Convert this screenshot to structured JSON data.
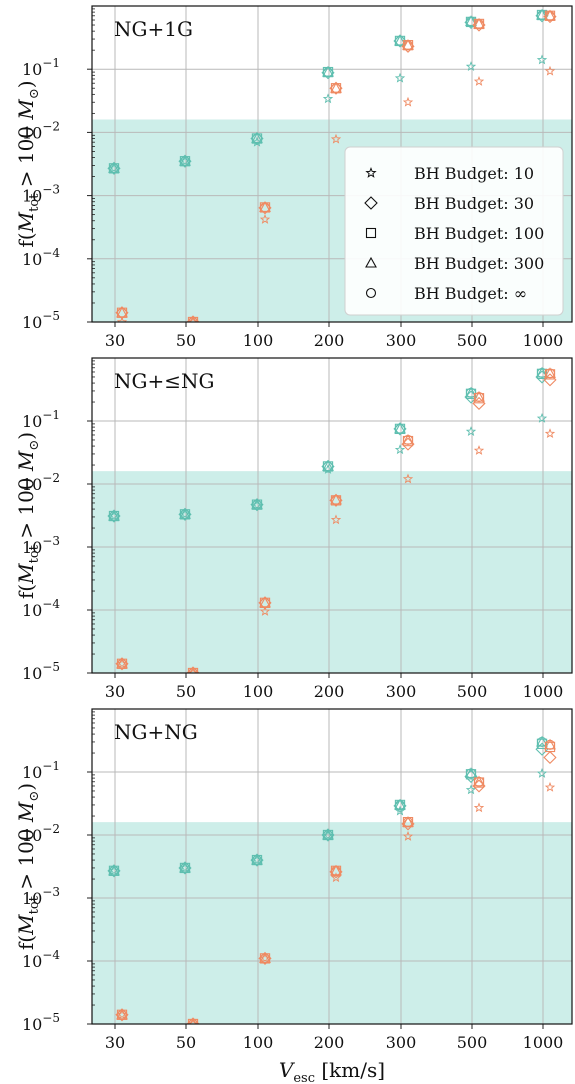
{
  "chart_data": [
    {
      "type": "scatter",
      "title": "NG+1G",
      "ylabel": "f(M_tot > 100 M_⊙)",
      "xlabel": "",
      "y_scale": "log",
      "ylim": [
        1e-05,
        1.0
      ],
      "x_categories": [
        "30",
        "50",
        "100",
        "200",
        "300",
        "500",
        "1000"
      ],
      "shaded_band": {
        "ymax": 0.016,
        "color": "#cdeee9"
      },
      "series": [
        {
          "name": "cyan",
          "color": "#5fbfb0",
          "points": {
            "10": [
              0.0027,
              0.0035,
              0.007,
              0.034,
              0.072,
              0.11,
              0.14
            ],
            "30": [
              0.0027,
              0.0035,
              0.008,
              0.088,
              0.28,
              0.55,
              0.7
            ],
            "100": [
              0.0027,
              0.0035,
              0.008,
              0.09,
              0.28,
              0.56,
              0.72
            ],
            "300": [
              0.0027,
              0.0035,
              0.008,
              0.09,
              0.28,
              0.57,
              0.72
            ],
            "inf": [
              0.0027,
              0.0035,
              0.008,
              0.09,
              0.28,
              0.57,
              0.72
            ]
          }
        },
        {
          "name": "orange",
          "color": "#ef8a62",
          "points": {
            "10": [
              1e-05,
              1e-05,
              0.00042,
              0.0078,
              0.03,
              0.064,
              0.093
            ],
            "30": [
              1.4e-05,
              1e-05,
              0.00064,
              0.05,
              0.23,
              0.5,
              0.68
            ],
            "100": [
              1.4e-05,
              1e-05,
              0.00065,
              0.05,
              0.24,
              0.52,
              0.7
            ],
            "300": [
              1.4e-05,
              1e-05,
              0.00065,
              0.05,
              0.24,
              0.52,
              0.7
            ],
            "inf": [
              1.4e-05,
              1e-05,
              0.00065,
              0.05,
              0.24,
              0.52,
              0.7
            ]
          }
        }
      ]
    },
    {
      "type": "scatter",
      "title": "NG+≤NG",
      "ylabel": "f(M_tot > 100 M_⊙)",
      "xlabel": "",
      "y_scale": "log",
      "ylim": [
        1e-05,
        1.0
      ],
      "x_categories": [
        "30",
        "50",
        "100",
        "200",
        "300",
        "500",
        "1000"
      ],
      "shaded_band": {
        "ymax": 0.016,
        "color": "#cdeee9"
      },
      "series": [
        {
          "name": "cyan",
          "color": "#5fbfb0",
          "points": {
            "10": [
              0.0031,
              0.0033,
              0.0046,
              0.017,
              0.035,
              0.068,
              0.11
            ],
            "30": [
              0.0031,
              0.0033,
              0.0047,
              0.019,
              0.075,
              0.24,
              0.5
            ],
            "100": [
              0.0031,
              0.0033,
              0.0047,
              0.019,
              0.075,
              0.27,
              0.56
            ],
            "300": [
              0.0031,
              0.0033,
              0.0047,
              0.019,
              0.075,
              0.28,
              0.58
            ],
            "inf": [
              0.0031,
              0.0033,
              0.0047,
              0.019,
              0.075,
              0.28,
              0.58
            ]
          }
        },
        {
          "name": "orange",
          "color": "#ef8a62",
          "points": {
            "10": [
              1.4e-05,
              1e-05,
              9.5e-05,
              0.0027,
              0.012,
              0.034,
              0.063
            ],
            "30": [
              1.4e-05,
              1e-05,
              0.00013,
              0.0055,
              0.043,
              0.19,
              0.45
            ],
            "100": [
              1.4e-05,
              1e-05,
              0.00013,
              0.0055,
              0.048,
              0.23,
              0.55
            ],
            "300": [
              1.4e-05,
              1e-05,
              0.00013,
              0.0056,
              0.05,
              0.24,
              0.57
            ],
            "inf": [
              1.4e-05,
              1e-05,
              0.00013,
              0.0056,
              0.05,
              0.24,
              0.57
            ]
          }
        }
      ]
    },
    {
      "type": "scatter",
      "title": "NG+NG",
      "ylabel": "f(M_tot > 100 M_⊙)",
      "xlabel": "V_esc [km/s]",
      "y_scale": "log",
      "ylim": [
        1e-05,
        1.0
      ],
      "x_categories": [
        "30",
        "50",
        "100",
        "200",
        "300",
        "500",
        "1000"
      ],
      "shaded_band": {
        "ymax": 0.016,
        "color": "#cdeee9"
      },
      "series": [
        {
          "name": "cyan",
          "color": "#5fbfb0",
          "points": {
            "10": [
              0.0027,
              0.003,
              0.004,
              0.0098,
              0.024,
              0.052,
              0.095
            ],
            "30": [
              0.0027,
              0.003,
              0.004,
              0.01,
              0.029,
              0.085,
              0.23
            ],
            "100": [
              0.0027,
              0.003,
              0.004,
              0.01,
              0.03,
              0.092,
              0.28
            ],
            "300": [
              0.0027,
              0.003,
              0.004,
              0.01,
              0.03,
              0.095,
              0.3
            ],
            "inf": [
              0.0027,
              0.003,
              0.004,
              0.01,
              0.03,
              0.095,
              0.3
            ]
          }
        },
        {
          "name": "orange",
          "color": "#ef8a62",
          "points": {
            "10": [
              1.4e-05,
              1e-05,
              0.00011,
              0.0021,
              0.0095,
              0.027,
              0.057
            ],
            "30": [
              1.4e-05,
              1e-05,
              0.00011,
              0.0026,
              0.015,
              0.06,
              0.17
            ],
            "100": [
              1.4e-05,
              1e-05,
              0.00011,
              0.0027,
              0.016,
              0.068,
              0.25
            ],
            "300": [
              1.4e-05,
              1e-05,
              0.00011,
              0.0027,
              0.016,
              0.07,
              0.27
            ],
            "inf": [
              1.4e-05,
              1e-05,
              0.00011,
              0.0027,
              0.016,
              0.07,
              0.27
            ]
          }
        }
      ]
    }
  ],
  "legend": {
    "placement": "right, first panel",
    "entries": [
      {
        "key": "10",
        "marker": "star",
        "label": "BH Budget: 10"
      },
      {
        "key": "30",
        "marker": "diamond",
        "label": "BH Budget: 30"
      },
      {
        "key": "100",
        "marker": "square",
        "label": "BH Budget: 100"
      },
      {
        "key": "300",
        "marker": "triangle",
        "label": "BH Budget: 300"
      },
      {
        "key": "inf",
        "marker": "circle",
        "label": "BH Budget: ∞"
      }
    ]
  },
  "y_tick_labels": [
    "10",
    "10",
    "10",
    "10",
    "10"
  ],
  "y_tick_exponents": [
    "−5",
    "−4",
    "−3",
    "−2",
    "−1"
  ],
  "y_label_parts": {
    "lead": "f(",
    "var": "M",
    "sub": "tot",
    "op": " > 100 ",
    "var2": "M",
    "sun": "⊙",
    "close": ")"
  },
  "x_label_parts": {
    "var": "V",
    "sub": "esc",
    "unit": " [km/s]"
  }
}
